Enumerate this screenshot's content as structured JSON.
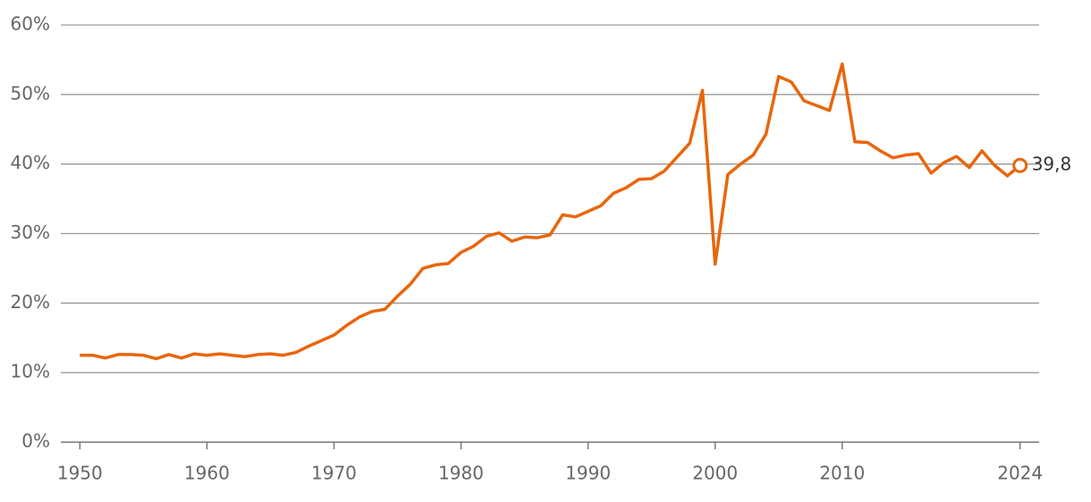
{
  "chart_data": {
    "type": "line",
    "x": [
      1950,
      1951,
      1952,
      1953,
      1954,
      1955,
      1956,
      1957,
      1958,
      1959,
      1960,
      1961,
      1962,
      1963,
      1964,
      1965,
      1966,
      1967,
      1968,
      1969,
      1970,
      1971,
      1972,
      1973,
      1974,
      1975,
      1976,
      1977,
      1978,
      1979,
      1980,
      1981,
      1982,
      1983,
      1984,
      1985,
      1986,
      1987,
      1988,
      1989,
      1990,
      1991,
      1992,
      1993,
      1994,
      1995,
      1996,
      1997,
      1998,
      1999,
      2000,
      2001,
      2002,
      2003,
      2004,
      2005,
      2006,
      2007,
      2008,
      2009,
      2010,
      2011,
      2012,
      2013,
      2014,
      2015,
      2016,
      2017,
      2018,
      2019,
      2020,
      2021,
      2022,
      2023,
      2024
    ],
    "values": [
      12.5,
      12.5,
      12.1,
      12.6,
      12.6,
      12.5,
      12.0,
      12.6,
      12.1,
      12.7,
      12.5,
      12.7,
      12.5,
      12.3,
      12.6,
      12.7,
      12.5,
      12.9,
      13.8,
      14.6,
      15.4,
      16.8,
      18.0,
      18.8,
      19.1,
      21.0,
      22.7,
      25.0,
      25.5,
      25.7,
      27.3,
      28.2,
      29.6,
      30.1,
      28.9,
      29.5,
      29.4,
      29.8,
      32.7,
      32.4,
      33.2,
      34.0,
      35.8,
      36.6,
      37.8,
      37.9,
      39.0,
      41.0,
      43.0,
      50.6,
      25.6,
      38.5,
      40.0,
      41.3,
      44.3,
      52.6,
      51.8,
      49.1,
      48.4,
      47.7,
      54.4,
      43.2,
      43.1,
      41.9,
      40.9,
      41.3,
      41.5,
      38.7,
      40.2,
      41.1,
      39.5,
      41.9,
      39.8,
      38.3,
      39.8
    ],
    "value_labels": [
      null,
      null,
      null,
      null,
      null,
      null,
      null,
      null,
      null,
      null,
      null,
      null,
      null,
      null,
      null,
      null,
      null,
      null,
      null,
      null,
      null,
      null,
      null,
      null,
      null,
      null,
      null,
      null,
      null,
      null,
      null,
      null,
      null,
      null,
      null,
      null,
      null,
      null,
      null,
      null,
      null,
      null,
      null,
      null,
      null,
      null,
      null,
      null,
      null,
      null,
      null,
      null,
      null,
      null,
      null,
      null,
      null,
      null,
      null,
      null,
      null,
      null,
      null,
      null,
      null,
      null,
      null,
      null,
      null,
      null,
      null,
      null,
      null,
      null,
      "39,8"
    ],
    "color": "#e8660c",
    "xlim": [
      1948.5,
      2025.5
    ],
    "xticks": [
      1950,
      1960,
      1970,
      1980,
      1990,
      2000,
      2010,
      2024
    ],
    "ylim": [
      0,
      60
    ],
    "yticks": [
      {
        "value": 0,
        "label": "0%"
      },
      {
        "value": 10,
        "label": "10%"
      },
      {
        "value": 20,
        "label": "20%"
      },
      {
        "value": 30,
        "label": "30%"
      },
      {
        "value": 40,
        "label": "40%"
      },
      {
        "value": 50,
        "label": "50%"
      },
      {
        "value": 60,
        "label": "60%"
      }
    ],
    "grid": true
  }
}
